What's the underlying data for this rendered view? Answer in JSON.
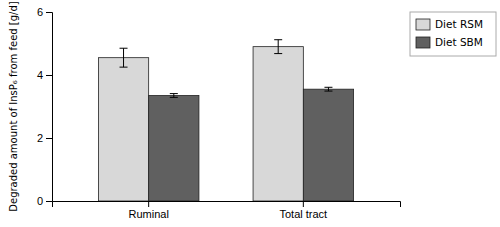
{
  "chart_data": {
    "type": "bar",
    "categories": [
      "Ruminal",
      "Total tract"
    ],
    "series": [
      {
        "name": "Diet RSM",
        "color": "#d8d8d8",
        "values": [
          4.55,
          4.9
        ],
        "errors": [
          0.3,
          0.22
        ]
      },
      {
        "name": "Diet SBM",
        "color": "#606060",
        "values": [
          3.35,
          3.55
        ],
        "errors": [
          0.06,
          0.06
        ]
      }
    ],
    "y_label": "Degraded amount of InsP₆ from feed [g/d]",
    "ylim": [
      0,
      6
    ],
    "yticks": [
      0,
      2,
      4,
      6
    ],
    "grid": false,
    "legend": "upper right"
  }
}
